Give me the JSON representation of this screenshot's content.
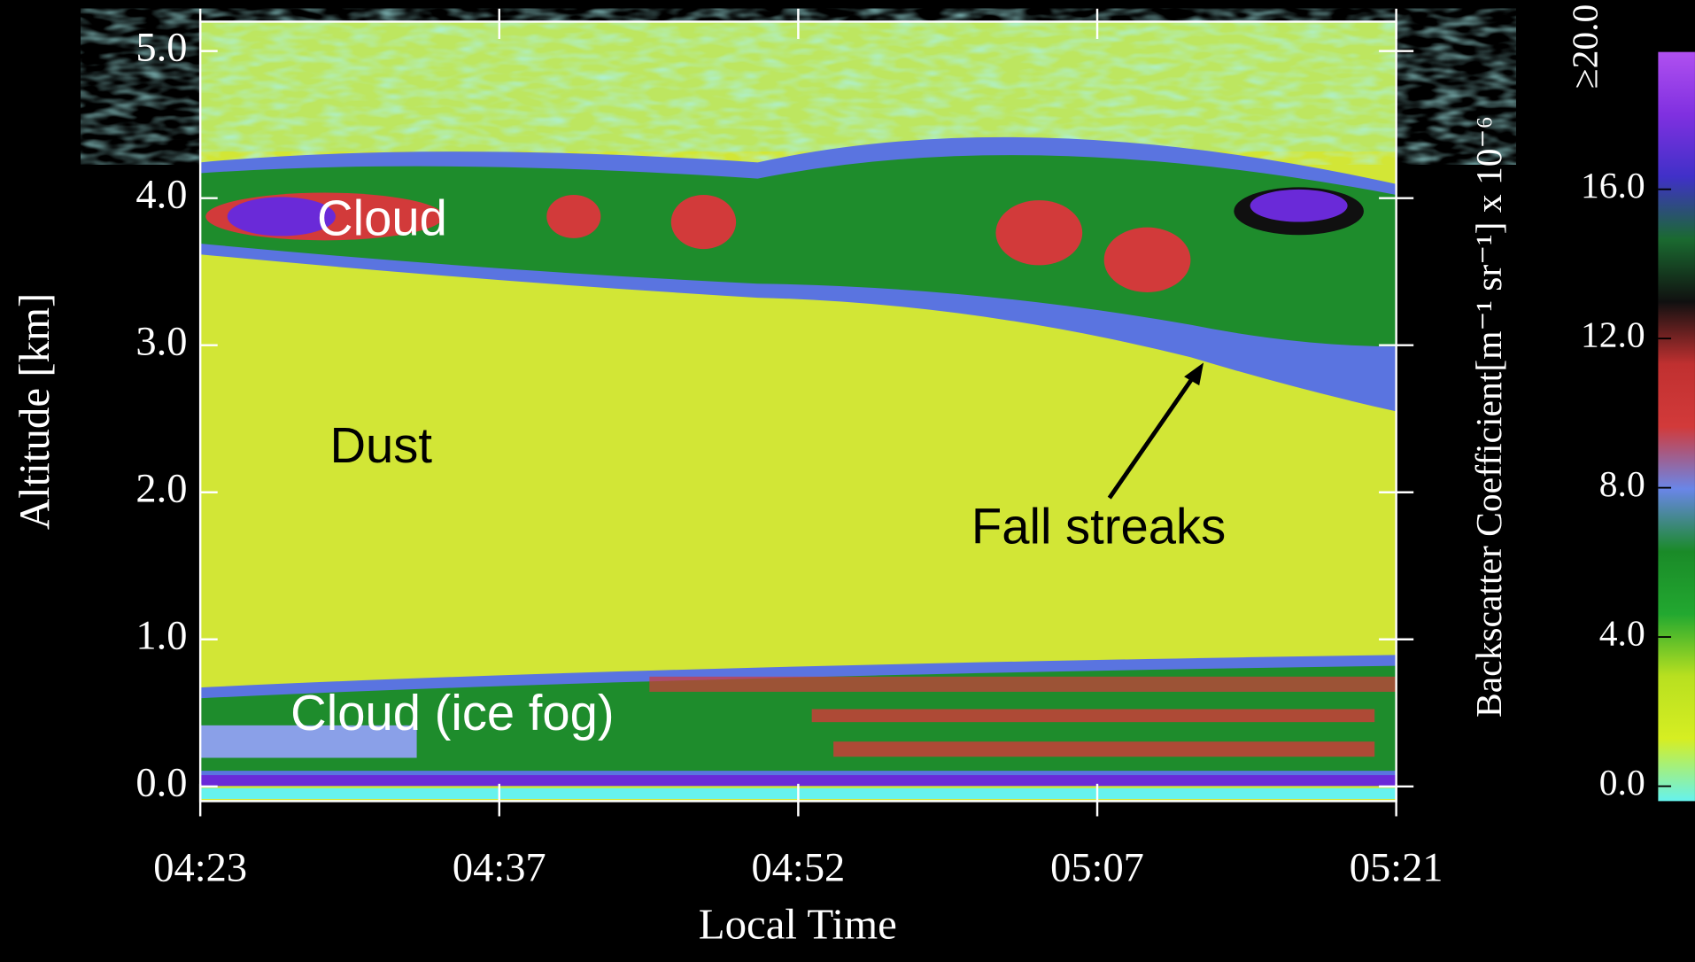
{
  "chart_data": {
    "type": "heatmap",
    "xlabel": "Local Time",
    "ylabel": "Altitude [km]",
    "xticks": [
      "04:23",
      "04:37",
      "04:52",
      "05:07",
      "05:21"
    ],
    "ylim": [
      -0.1,
      5.2
    ],
    "yticks": [
      {
        "value": 0,
        "label": "0.0"
      },
      {
        "value": 1,
        "label": "1.0"
      },
      {
        "value": 2,
        "label": "2.0"
      },
      {
        "value": 3,
        "label": "3.0"
      },
      {
        "value": 4,
        "label": "4.0"
      },
      {
        "value": 5,
        "label": "5.0"
      }
    ],
    "colorbar": {
      "label": "Backscatter Coefficient[m⁻¹ sr⁻¹] x 10⁻⁶",
      "lim": [
        -0.4,
        20
      ],
      "ticks": [
        {
          "value": 0,
          "label": "0.0"
        },
        {
          "value": 4,
          "label": "4.0"
        },
        {
          "value": 8,
          "label": "8.0"
        },
        {
          "value": 12,
          "label": "12.0"
        },
        {
          "value": 16,
          "label": "16.0"
        },
        {
          "value": 20,
          "label": "≥20.0"
        }
      ],
      "colormap": [
        "#66f2ee",
        "#d6ee22",
        "#b8e020",
        "#22a830",
        "#1a8a28",
        "#6a86e8",
        "#d23a3a",
        "#c03030",
        "#101010",
        "#1a6a30",
        "#4030c8",
        "#8030e0",
        "#b050f0"
      ]
    },
    "annotations": [
      "Cloud",
      "Dust",
      "Fall streaks",
      "Cloud (ice fog)"
    ]
  }
}
